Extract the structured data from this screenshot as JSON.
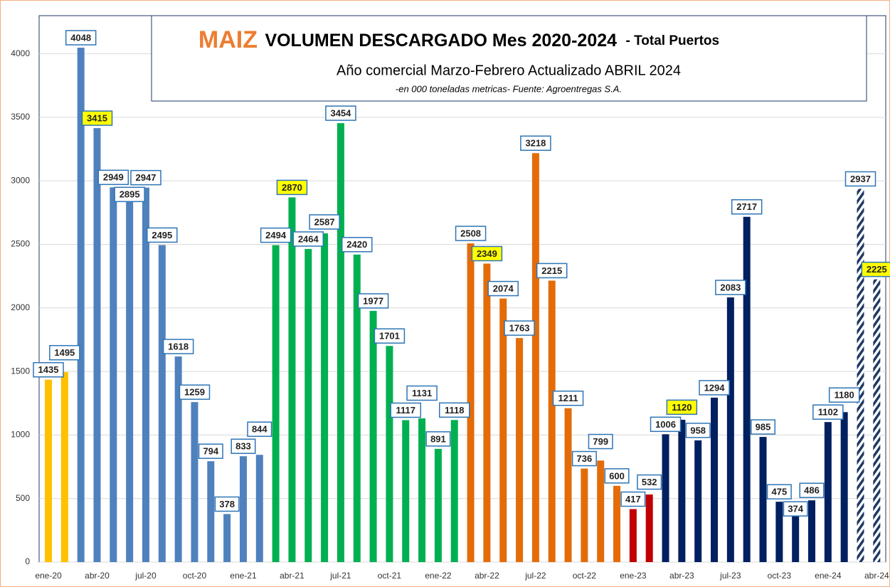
{
  "chart_data": {
    "type": "bar",
    "title_parts": [
      "MAIZ",
      "VOLUMEN DESCARGADO  Mes  2020-2024",
      "- Total Puertos"
    ],
    "subtitle": "Año comercial Marzo-Febrero Actualizado ABRIL  2024",
    "note": "-en 000 toneladas metricas- Fuente: Agroentregas S.A.",
    "categories": [
      "ene-20",
      null,
      null,
      "abr-20",
      null,
      null,
      "jul-20",
      null,
      null,
      "oct-20",
      null,
      null,
      "ene-21",
      null,
      null,
      "abr-21",
      null,
      null,
      "jul-21",
      null,
      null,
      "oct-21",
      null,
      null,
      "ene-22",
      null,
      null,
      "abr-22",
      null,
      null,
      "jul-22",
      null,
      null,
      "oct-22",
      null,
      null,
      "ene-23",
      null,
      null,
      "abr-23",
      null,
      null,
      "jul-23",
      null,
      null,
      "oct-23",
      null,
      null,
      "ene-24",
      null,
      null,
      "abr-24"
    ],
    "values": [
      1435,
      1495,
      4048,
      3415,
      2949,
      2895,
      2947,
      2495,
      1618,
      1259,
      794,
      378,
      833,
      844,
      2494,
      2870,
      2464,
      2587,
      3454,
      2420,
      1977,
      1701,
      1117,
      1131,
      891,
      1118,
      2508,
      2349,
      2074,
      1763,
      3218,
      2215,
      1211,
      736,
      799,
      600,
      417,
      532,
      1006,
      1120,
      958,
      1294,
      2083,
      2717,
      985,
      475,
      374,
      486,
      1102,
      1180,
      2937,
      2225
    ],
    "colors": [
      "#FFC000",
      "#FFC000",
      "#4F81BD",
      "#4F81BD",
      "#4F81BD",
      "#4F81BD",
      "#4F81BD",
      "#4F81BD",
      "#4F81BD",
      "#4F81BD",
      "#4F81BD",
      "#4F81BD",
      "#4F81BD",
      "#4F81BD",
      "#00B050",
      "#00B050",
      "#00B050",
      "#00B050",
      "#00B050",
      "#00B050",
      "#00B050",
      "#00B050",
      "#00B050",
      "#00B050",
      "#00B050",
      "#00B050",
      "#E36C09",
      "#E36C09",
      "#E36C09",
      "#E36C09",
      "#E36C09",
      "#E36C09",
      "#E36C09",
      "#E36C09",
      "#E36C09",
      "#E36C09",
      "#C00000",
      "#C00000",
      "#002060",
      "#002060",
      "#002060",
      "#002060",
      "#002060",
      "#002060",
      "#002060",
      "#002060",
      "#002060",
      "#002060",
      "#002060",
      "#002060",
      "#1F3864",
      "#1F3864"
    ],
    "hatched": [
      50,
      51
    ],
    "highlighted_labels": [
      3,
      15,
      27,
      39,
      51
    ],
    "ylim": [
      0,
      4300
    ],
    "yticks": [
      0,
      500,
      1000,
      1500,
      2000,
      2500,
      3000,
      3500,
      4000
    ],
    "grid": true
  }
}
